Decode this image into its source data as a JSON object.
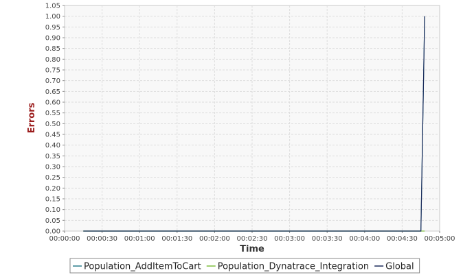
{
  "chart_data": {
    "type": "line",
    "title": "",
    "xlabel": "Time",
    "ylabel": "Errors",
    "x_ticks": [
      "00:00:00",
      "00:00:30",
      "00:01:00",
      "00:01:30",
      "00:02:00",
      "00:02:30",
      "00:03:00",
      "00:03:30",
      "00:04:00",
      "00:04:30",
      "00:05:00"
    ],
    "y_ticks": [
      "0.00",
      "0.05",
      "0.10",
      "0.15",
      "0.20",
      "0.25",
      "0.30",
      "0.35",
      "0.40",
      "0.45",
      "0.50",
      "0.55",
      "0.60",
      "0.65",
      "0.70",
      "0.75",
      "0.80",
      "0.85",
      "0.90",
      "0.95",
      "1.00",
      "1.05"
    ],
    "xlim": [
      "00:00:00",
      "00:05:00"
    ],
    "ylim": [
      0,
      1.05
    ],
    "grid": true,
    "legend_position": "bottom",
    "series": [
      {
        "name": "Population_AddItemToCart",
        "color": "#2a7e8c",
        "x": [
          "00:00:15",
          "00:04:45",
          "00:04:48"
        ],
        "y": [
          0,
          0,
          1.0
        ]
      },
      {
        "name": "Population_Dynatrace_Integration",
        "color": "#7fbf3f",
        "x": [
          "00:00:15",
          "00:04:45",
          "00:04:48"
        ],
        "y": [
          0,
          0,
          0
        ]
      },
      {
        "name": "Global",
        "color": "#1a2a5a",
        "x": [
          "00:00:15",
          "00:04:45",
          "00:04:48"
        ],
        "y": [
          0,
          0,
          1.0
        ]
      }
    ]
  }
}
